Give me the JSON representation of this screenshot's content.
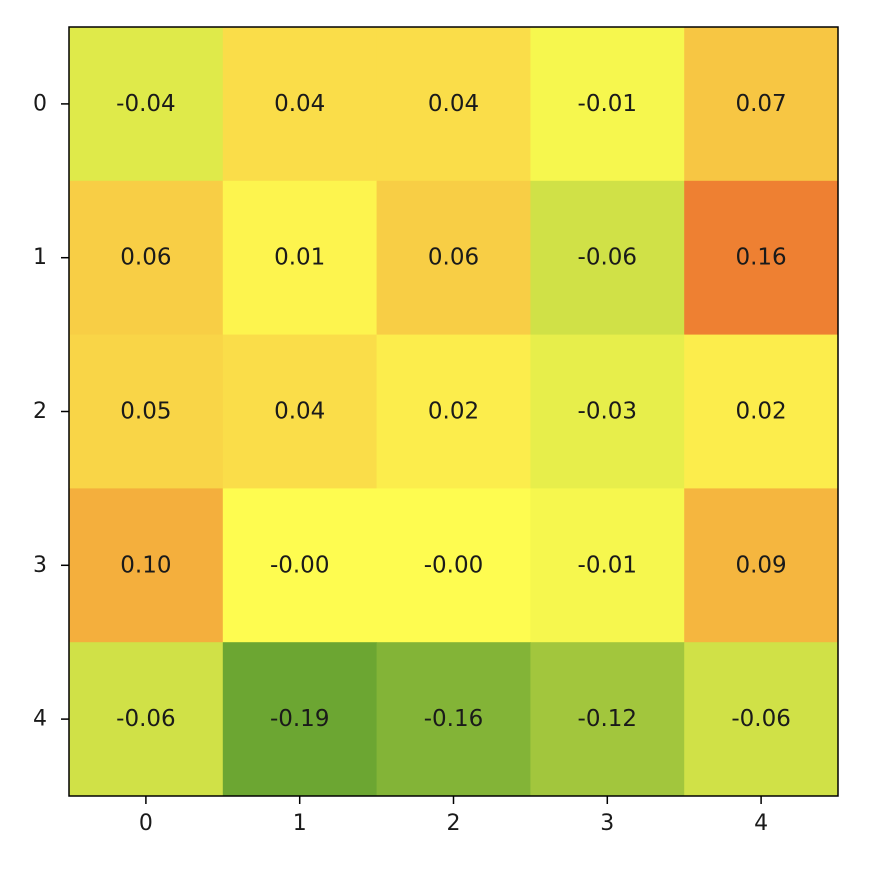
{
  "chart_data": {
    "type": "heatmap",
    "title": "",
    "xlabel": "",
    "ylabel": "",
    "x_categories": [
      "0",
      "1",
      "2",
      "3",
      "4"
    ],
    "y_categories": [
      "0",
      "1",
      "2",
      "3",
      "4"
    ],
    "values": [
      [
        -0.04,
        0.04,
        0.04,
        -0.01,
        0.07
      ],
      [
        0.06,
        0.01,
        0.06,
        -0.06,
        0.16
      ],
      [
        0.05,
        0.04,
        0.02,
        -0.03,
        0.02
      ],
      [
        0.1,
        -0.0,
        -0.0,
        -0.01,
        0.09
      ],
      [
        -0.06,
        -0.19,
        -0.16,
        -0.12,
        -0.06
      ]
    ],
    "cell_labels": [
      [
        "-0.04",
        "0.04",
        "0.04",
        "-0.01",
        "0.07"
      ],
      [
        "0.06",
        "0.01",
        "0.06",
        "-0.06",
        "0.16"
      ],
      [
        "0.05",
        "0.04",
        "0.02",
        "-0.03",
        "0.02"
      ],
      [
        "0.10",
        "-0.00",
        "-0.00",
        "-0.01",
        "0.09"
      ],
      [
        "-0.06",
        "-0.19",
        "-0.16",
        "-0.12",
        "-0.06"
      ]
    ],
    "colormap": "green-yellow-orange",
    "colorbar": false,
    "grid": false,
    "legend": "none"
  }
}
